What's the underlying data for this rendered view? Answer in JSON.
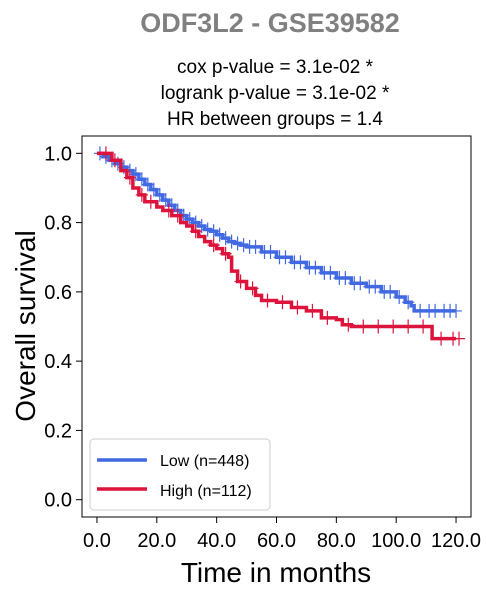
{
  "chart_data": {
    "type": "line",
    "title": "ODF3L2 - GSE39582",
    "subtitle_lines": [
      "cox p-value = 3.1e-02 *",
      "logrank p-value = 3.1e-02 *",
      "HR between groups = 1.4"
    ],
    "xlabel": "Time in months",
    "ylabel": "Overall survival",
    "xlim": [
      -5,
      125
    ],
    "ylim": [
      -0.05,
      1.05
    ],
    "xticks": [
      0,
      20,
      40,
      60,
      80,
      100,
      120
    ],
    "xtick_labels": [
      "0.0",
      "20.0",
      "40.0",
      "60.0",
      "80.0",
      "100.0",
      "120.0"
    ],
    "yticks": [
      0,
      0.2,
      0.4,
      0.6,
      0.8,
      1.0
    ],
    "ytick_labels": [
      "0.0",
      "0.2",
      "0.4",
      "0.6",
      "0.8",
      "1.0"
    ],
    "grid": false,
    "legend_position": "lower-left",
    "series": [
      {
        "name": "Low (n=448)",
        "color": "#4169e1",
        "x": [
          0,
          2,
          4,
          6,
          8,
          10,
          12,
          14,
          16,
          18,
          20,
          22,
          24,
          26,
          28,
          30,
          32,
          34,
          36,
          38,
          40,
          42,
          44,
          46,
          48,
          50,
          55,
          60,
          65,
          70,
          75,
          80,
          85,
          90,
          95,
          100,
          103,
          105,
          106,
          110,
          115,
          120
        ],
        "y": [
          1.0,
          0.99,
          0.98,
          0.97,
          0.96,
          0.95,
          0.94,
          0.925,
          0.91,
          0.895,
          0.88,
          0.865,
          0.85,
          0.835,
          0.82,
          0.81,
          0.8,
          0.79,
          0.78,
          0.775,
          0.765,
          0.755,
          0.745,
          0.74,
          0.735,
          0.73,
          0.715,
          0.7,
          0.685,
          0.67,
          0.655,
          0.64,
          0.625,
          0.615,
          0.6,
          0.585,
          0.57,
          0.56,
          0.545,
          0.545,
          0.545,
          0.545
        ],
        "censor_x": [
          1,
          3,
          5,
          7,
          9,
          11,
          13,
          15,
          17,
          19,
          21,
          23,
          25,
          27,
          29,
          31,
          33,
          35,
          37,
          39,
          41,
          43,
          45,
          47,
          49,
          51,
          53,
          56,
          58,
          61,
          63,
          66,
          68,
          71,
          73,
          76,
          78,
          81,
          83,
          86,
          88,
          91,
          93,
          96,
          98,
          101,
          104,
          108,
          111,
          113,
          116,
          118,
          120
        ]
      },
      {
        "name": "High (n=112)",
        "color": "#dc143c",
        "x": [
          0,
          5,
          8,
          10,
          12,
          14,
          16,
          20,
          22,
          25,
          28,
          30,
          32,
          34,
          36,
          38,
          40,
          42,
          44,
          45,
          47,
          50,
          53,
          55,
          60,
          65,
          70,
          75,
          80,
          82,
          85,
          90,
          95,
          100,
          110,
          112,
          120
        ],
        "y": [
          1.0,
          0.98,
          0.95,
          0.93,
          0.9,
          0.88,
          0.86,
          0.845,
          0.835,
          0.82,
          0.8,
          0.79,
          0.775,
          0.76,
          0.745,
          0.735,
          0.725,
          0.71,
          0.7,
          0.66,
          0.63,
          0.61,
          0.59,
          0.575,
          0.57,
          0.555,
          0.545,
          0.525,
          0.52,
          0.505,
          0.5,
          0.5,
          0.5,
          0.5,
          0.5,
          0.465,
          0.465
        ],
        "censor_x": [
          3,
          6,
          11,
          15,
          18,
          24,
          27,
          33,
          39,
          43,
          48,
          52,
          57,
          62,
          67,
          72,
          77,
          84,
          89,
          94,
          99,
          104,
          109,
          115,
          119,
          121
        ]
      }
    ]
  }
}
